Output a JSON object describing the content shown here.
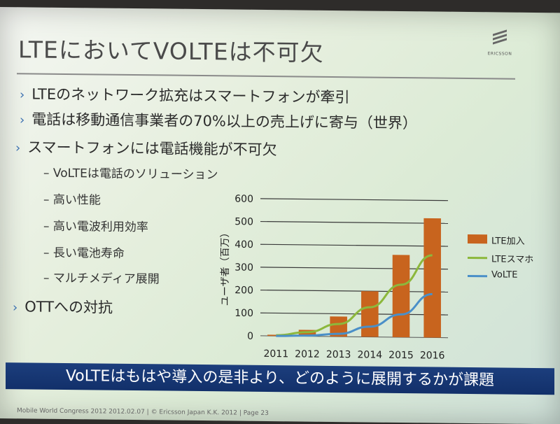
{
  "slide": {
    "title": "LTEにおいてVOLTEは不可欠",
    "logo_text": "ERICSSON",
    "bullets": [
      {
        "mark": "›",
        "text": "LTEのネットワーク拡充はスマートフォンが牽引"
      },
      {
        "mark": "›",
        "text": "電話は移動通信事業者の70%以上の売上げに寄与（世界）"
      },
      {
        "mark": "›",
        "text": "スマートフォンには電話機能が不可欠"
      }
    ],
    "sub_bullets": [
      "– VoLTEは電話のソリューション",
      "– 高い性能",
      "– 高い電波利用効率",
      "– 長い電池寿命",
      "– マルチメディア展開"
    ],
    "last_bullet": {
      "mark": "›",
      "text": "OTTへの対抗"
    },
    "banner": "VoLTEはもはや導入の是非より、どのように展開するかが課題",
    "footer": "Mobile World Congress 2012   2012.02.07  |  © Ericsson Japan K.K. 2012  |  Page 23"
  },
  "chart_data": {
    "type": "bar",
    "categories": [
      "2011",
      "2012",
      "2013",
      "2014",
      "2015",
      "2016"
    ],
    "ylabel": "ユーザ者（百万）",
    "ylim": [
      0,
      600
    ],
    "yticks": [
      "0",
      "100",
      "200",
      "300",
      "400",
      "500",
      "600"
    ],
    "grid": true,
    "legend_position": "right",
    "series": [
      {
        "name": "LTE加入",
        "kind": "bar",
        "color": "#c8641e",
        "values": [
          5,
          28,
          88,
          200,
          360,
          522
        ]
      },
      {
        "name": "LTEスマホ",
        "kind": "line",
        "color": "#8cb83c",
        "values": [
          3,
          18,
          55,
          130,
          230,
          360
        ]
      },
      {
        "name": "VoLTE",
        "kind": "line",
        "color": "#4a8fc8",
        "values": [
          0,
          3,
          12,
          45,
          100,
          190
        ]
      }
    ]
  }
}
